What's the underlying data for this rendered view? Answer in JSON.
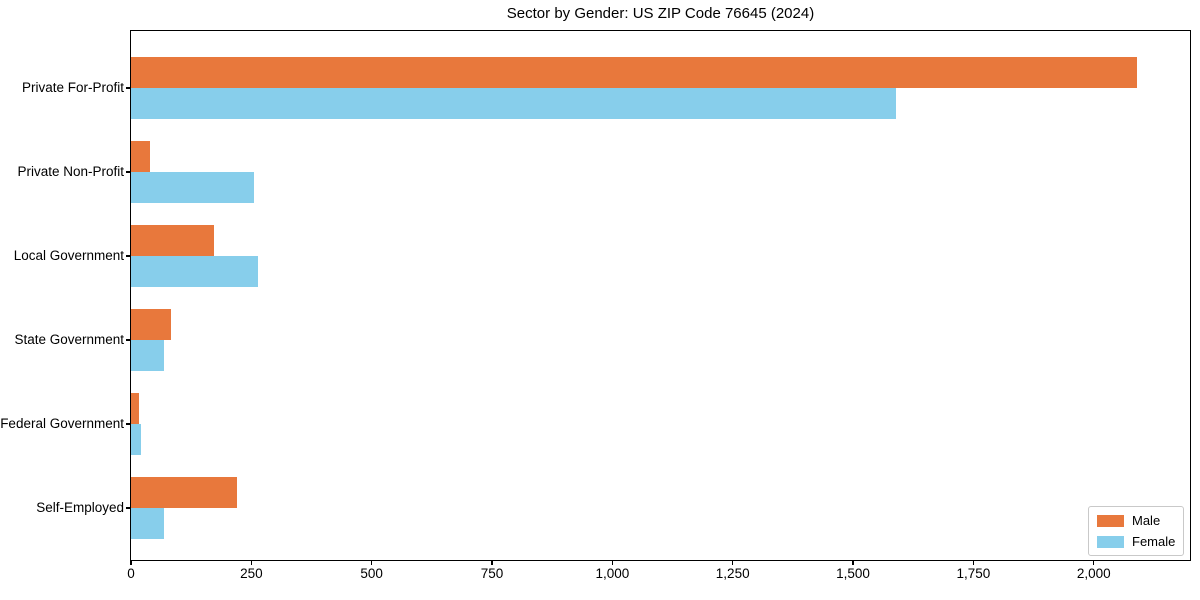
{
  "figure": {
    "background": "#ffffff"
  },
  "chart_data": {
    "type": "bar",
    "orientation": "horizontal",
    "title": "Sector by Gender: US ZIP Code 76645 (2024)",
    "categories": [
      "Private For-Profit",
      "Private Non-Profit",
      "Local Government",
      "State Government",
      "Federal Government",
      "Self-Employed"
    ],
    "series": [
      {
        "name": "Male",
        "color": "#e8783c",
        "values": [
          2090,
          40,
          173,
          83,
          17,
          220
        ]
      },
      {
        "name": "Female",
        "color": "#87ceeb",
        "values": [
          1590,
          256,
          264,
          69,
          21,
          69
        ]
      }
    ],
    "xlabel": "",
    "ylabel": "",
    "xlim": [
      0,
      2200
    ],
    "xticks": [
      0,
      250,
      500,
      750,
      1000,
      1250,
      1500,
      1750,
      2000
    ],
    "xtick_labels": [
      "0",
      "250",
      "500",
      "750",
      "1,000",
      "1,250",
      "1,500",
      "1,750",
      "2,000"
    ],
    "grid": false,
    "frame": true,
    "axis_color": "#000000",
    "legend": {
      "position": "lower right",
      "entries": [
        "Male",
        "Female"
      ]
    }
  }
}
